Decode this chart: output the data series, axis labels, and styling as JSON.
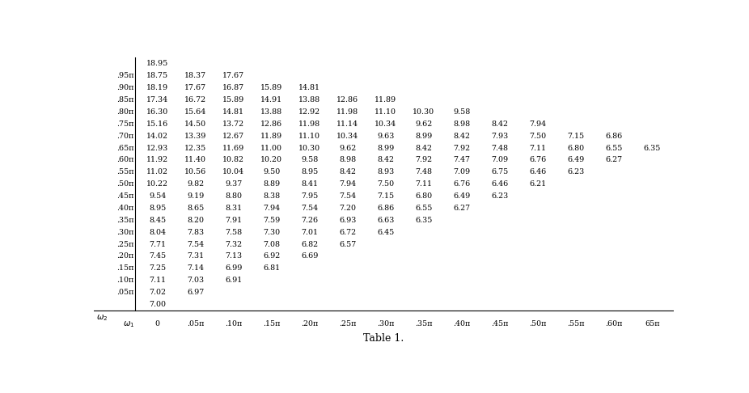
{
  "title": "Table 1.",
  "col_labels": [
    "0",
    ".05π",
    ".10π",
    ".15π",
    ".20π",
    ".25π",
    ".30π",
    ".35π",
    ".40π",
    ".45π",
    ".50π",
    ".55π",
    ".60π",
    "65π"
  ],
  "row_labels": [
    "",
    ".95π",
    ".90π",
    ".85π",
    ".80π",
    ".75π",
    ".70π",
    ".65π",
    ".60π",
    ".55π",
    ".50π",
    ".45π",
    ".40π",
    ".35π",
    ".30π",
    ".25π",
    ".20π",
    ".15π",
    ".10π",
    ".05π",
    ""
  ],
  "table_data": [
    [
      "18.95",
      "",
      "",
      "",
      "",
      "",
      "",
      "",
      "",
      "",
      "",
      "",
      "",
      ""
    ],
    [
      "18.75",
      "18.37",
      "17.67",
      "",
      "",
      "",
      "",
      "",
      "",
      "",
      "",
      "",
      "",
      ""
    ],
    [
      "18.19",
      "17.67",
      "16.87",
      "15.89",
      "14.81",
      "",
      "",
      "",
      "",
      "",
      "",
      "",
      "",
      ""
    ],
    [
      "17.34",
      "16.72",
      "15.89",
      "14.91",
      "13.88",
      "12.86",
      "11.89",
      "",
      "",
      "",
      "",
      "",
      "",
      ""
    ],
    [
      "16.30",
      "15.64",
      "14.81",
      "13.88",
      "12.92",
      "11.98",
      "11.10",
      "10.30",
      "9.58",
      "",
      "",
      "",
      "",
      ""
    ],
    [
      "15.16",
      "14.50",
      "13.72",
      "12.86",
      "11.98",
      "11.14",
      "10.34",
      "9.62",
      "8.98",
      "8.42",
      "7.94",
      "",
      "",
      ""
    ],
    [
      "14.02",
      "13.39",
      "12.67",
      "11.89",
      "11.10",
      "10.34",
      "9.63",
      "8.99",
      "8.42",
      "7.93",
      "7.50",
      "7.15",
      "6.86",
      ""
    ],
    [
      "12.93",
      "12.35",
      "11.69",
      "11.00",
      "10.30",
      "9.62",
      "8.99",
      "8.42",
      "7.92",
      "7.48",
      "7.11",
      "6.80",
      "6.55",
      "6.35"
    ],
    [
      "11.92",
      "11.40",
      "10.82",
      "10.20",
      "9.58",
      "8.98",
      "8.42",
      "7.92",
      "7.47",
      "7.09",
      "6.76",
      "6.49",
      "6.27",
      ""
    ],
    [
      "11.02",
      "10.56",
      "10.04",
      "9.50",
      "8.95",
      "8.42",
      "8.93",
      "7.48",
      "7.09",
      "6.75",
      "6.46",
      "6.23",
      "",
      ""
    ],
    [
      "10.22",
      "9.82",
      "9.37",
      "8.89",
      "8.41",
      "7.94",
      "7.50",
      "7.11",
      "6.76",
      "6.46",
      "6.21",
      "",
      "",
      ""
    ],
    [
      "9.54",
      "9.19",
      "8.80",
      "8.38",
      "7.95",
      "7.54",
      "7.15",
      "6.80",
      "6.49",
      "6.23",
      "",
      "",
      "",
      ""
    ],
    [
      "8.95",
      "8.65",
      "8.31",
      "7.94",
      "7.54",
      "7.20",
      "6.86",
      "6.55",
      "6.27",
      "",
      "",
      "",
      "",
      ""
    ],
    [
      "8.45",
      "8.20",
      "7.91",
      "7.59",
      "7.26",
      "6.93",
      "6.63",
      "6.35",
      "",
      "",
      "",
      "",
      "",
      ""
    ],
    [
      "8.04",
      "7.83",
      "7.58",
      "7.30",
      "7.01",
      "6.72",
      "6.45",
      "",
      "",
      "",
      "",
      "",
      "",
      ""
    ],
    [
      "7.71",
      "7.54",
      "7.32",
      "7.08",
      "6.82",
      "6.57",
      "",
      "",
      "",
      "",
      "",
      "",
      "",
      ""
    ],
    [
      "7.45",
      "7.31",
      "7.13",
      "6.92",
      "6.69",
      "",
      "",
      "",
      "",
      "",
      "",
      "",
      "",
      ""
    ],
    [
      "7.25",
      "7.14",
      "6.99",
      "6.81",
      "",
      "",
      "",
      "",
      "",
      "",
      "",
      "",
      "",
      ""
    ],
    [
      "7.11",
      "7.03",
      "6.91",
      "",
      "",
      "",
      "",
      "",
      "",
      "",
      "",
      "",
      "",
      ""
    ],
    [
      "7.02",
      "6.97",
      "",
      "",
      "",
      "",
      "",
      "",
      "",
      "",
      "",
      "",
      "",
      ""
    ],
    [
      "7.00",
      "",
      "",
      "",
      "",
      "",
      "",
      "",
      "",
      "",
      "",
      "",
      "",
      ""
    ]
  ]
}
